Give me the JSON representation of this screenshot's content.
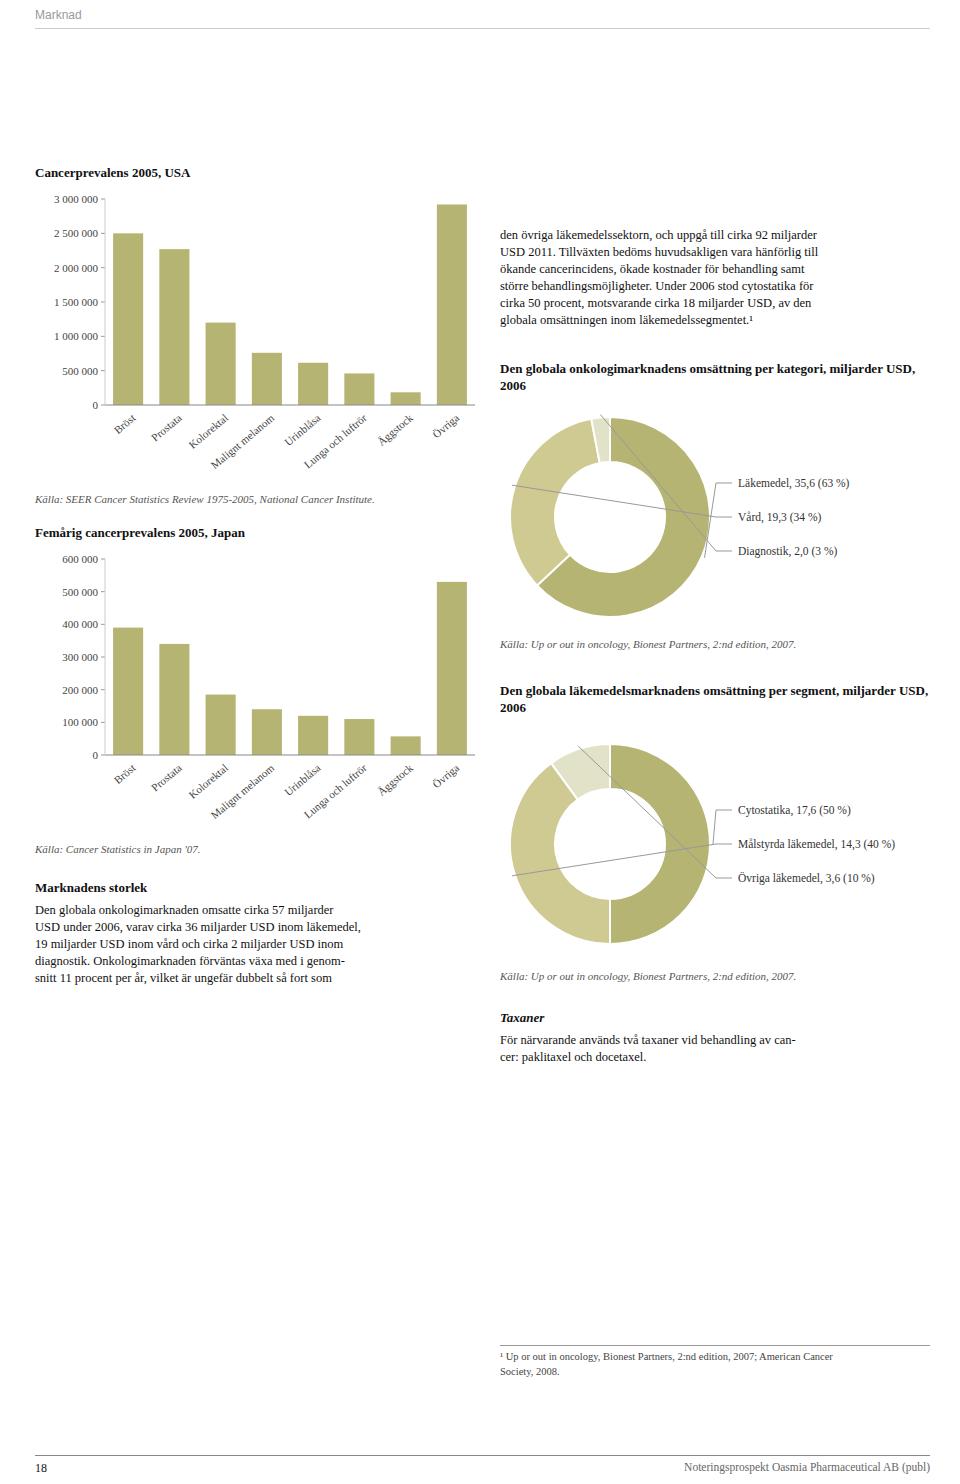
{
  "page": {
    "background_color": "#ffffff",
    "title": "Marknad",
    "number": "18",
    "footer": "Noteringsprospekt Oasmia Pharmaceutical AB (publ)",
    "right_lines": [
      "den övriga läkemedelssektorn, och uppgå till cirka 92 miljarder",
      "USD 2011. Tillväxten bedöms huvudsakligen vara hänförlig till",
      "ökande cancerincidens, ökade kostnader för behandling samt",
      "större behandlingsmöjligheter. Under 2006 stod cytostatika för",
      "cirka 50 procent, motsvarande cirka 18 miljarder USD, av den",
      "globala omsättningen inom läkemedelssegmentet.¹"
    ],
    "marknad_title": "Marknadens storlek",
    "marknad_lines": [
      "Den globala onkologimarknaden omsatte cirka 57 miljarder",
      "USD under 2006, varav cirka 36 miljarder USD inom läkemedel,",
      "19 miljarder USD inom vård och cirka 2 miljarder USD inom",
      "diagnostik. Onkologimarknaden förväntas växa med i genom-",
      "snitt 11 procent per år, vilket är ungefär dubbelt så fort som"
    ],
    "taxaner_title": "Taxaner",
    "taxaner_lines": [
      "För närvarande används två taxaner vid behandling av can-",
      "cer: paklitaxel och docetaxel."
    ],
    "footnote_lines": [
      "¹ Up or out in oncology, Bionest Partners, 2:nd edition, 2007; American Cancer",
      "Society, 2008."
    ]
  },
  "chart_data": [
    {
      "type": "bar",
      "title": "Cancerprevalens 2005, USA",
      "categories": [
        "Bröst",
        "Prostata",
        "Kolorektal",
        "Malignt melanom",
        "Urinblåsa",
        "Lunga och luftrör",
        "Äggstock",
        "Övriga"
      ],
      "values": [
        2500000,
        2270000,
        1200000,
        760000,
        615000,
        460000,
        185000,
        2920000
      ],
      "color": "#b5b472",
      "ylim": [
        0,
        3000000
      ],
      "yticks": [
        0,
        {
          "value": 500000,
          "label": "500 000"
        },
        {
          "value": 1000000,
          "label": "1 000 000"
        },
        {
          "value": 1500000,
          "label": "1 500 000"
        },
        {
          "value": 2000000,
          "label": "2 000 000"
        },
        {
          "value": 2500000,
          "label": "2 500 000"
        },
        {
          "value": 3000000,
          "label": "3 000 000"
        }
      ],
      "grid": false,
      "annotations": [
        "Källa: SEER Cancer Statistics Review 1975-2005, National Cancer Institute."
      ]
    },
    {
      "type": "bar",
      "title": "Femårig cancerprevalens 2005, Japan",
      "categories": [
        "Bröst",
        "Prostata",
        "Kolorektal",
        "Malignt melanom",
        "Urinblåsa",
        "Lunga och luftrör",
        "Äggstock",
        "Övriga"
      ],
      "values": [
        390000,
        340000,
        185000,
        140000,
        120000,
        110000,
        57000,
        530000
      ],
      "color": "#b5b472",
      "ylim": [
        0,
        600000
      ],
      "yticks": [
        0,
        {
          "value": 100000,
          "label": "100 000"
        },
        {
          "value": 200000,
          "label": "200 000"
        },
        {
          "value": 300000,
          "label": "300 000"
        },
        {
          "value": 400000,
          "label": "400 000"
        },
        {
          "value": 500000,
          "label": "500 000"
        },
        {
          "value": 600000,
          "label": "600 000"
        }
      ],
      "grid": false,
      "annotations": [
        "Källa: Cancer Statistics in Japan '07."
      ]
    },
    {
      "type": "donut",
      "title": "Den globala onkologimarknadens omsättning per kategori, miljarder USD, 2006",
      "categories": [
        "Läkemedel, 35,6 (63 %)",
        "Vård, 19,3 (34 %)",
        "Diagnostik, 2,0 (3 %)"
      ],
      "values": [
        63,
        34,
        3
      ],
      "colors": [
        "#b5b472",
        "#ceca92",
        "#e2e2c8"
      ],
      "annotations": [
        "Källa: Up or out in oncology, Bionest Partners, 2:nd edition, 2007."
      ]
    },
    {
      "type": "donut",
      "title": "Den globala läkemedelsmarknadens omsättning per segment, miljarder USD, 2006",
      "categories": [
        "Cytostatika, 17,6 (50 %)",
        "Målstyrda läkemedel, 14,3 (40 %)",
        "Övriga läkemedel, 3,6 (10 %)"
      ],
      "values": [
        50,
        40,
        10
      ],
      "colors": [
        "#b5b472",
        "#ceca92",
        "#e2e2c8"
      ],
      "annotations": [
        "Källa: Up or out in oncology, Bionest Partners, 2:nd edition, 2007."
      ]
    }
  ]
}
